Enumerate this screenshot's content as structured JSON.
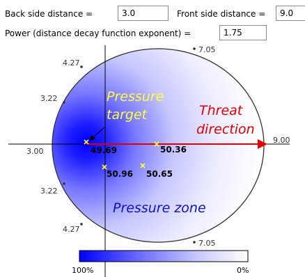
{
  "form": {
    "back_side_label": "Back side distance =",
    "back_side_value": "3.0",
    "front_side_label": "Front side distance =",
    "front_side_value": "9.0",
    "power_label": "Power (distance decay function exponent) =",
    "power_value": "1.75"
  },
  "plot": {
    "boundary_labels": {
      "top": "7.05",
      "bottom": "7.05",
      "upper_left": "4.27",
      "lower_left": "4.27",
      "left_upper": "3.22",
      "left_lower": "3.22",
      "back": "3.00",
      "front": "9.00"
    },
    "annotations": {
      "pressure_target_line1": "Pressure",
      "pressure_target_line2": "target",
      "threat_line1": "Threat",
      "threat_line2": "direction",
      "pressure_zone": "Pressure zone"
    },
    "points": [
      {
        "label": "49.69"
      },
      {
        "label": "50.36"
      },
      {
        "label": "50.96"
      },
      {
        "label": "50.65"
      }
    ],
    "colors": {
      "arrow": "#e00000",
      "pressure_target_text": "#ffff33",
      "threat_text": "#e00000",
      "zone_text": "#1010c8",
      "marker": "#ffff33",
      "gradient_max": "#0000ff",
      "gradient_min": "#ffffff"
    }
  },
  "legend": {
    "max_label": "100%",
    "min_label": "0%"
  }
}
